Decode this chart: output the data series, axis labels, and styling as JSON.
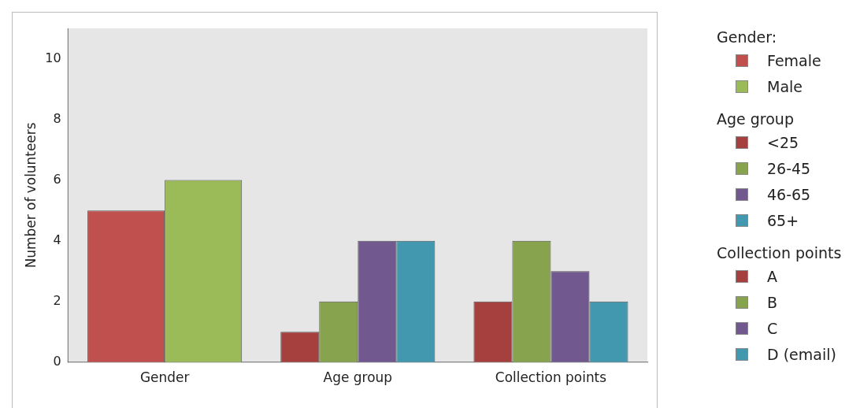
{
  "chart_data": {
    "type": "bar",
    "ylabel": "Number of volunteers",
    "categories": [
      "Gender",
      "Age group",
      "Collection points"
    ],
    "series": [
      {
        "name": "Female",
        "color": "#c0504d",
        "values": [
          5,
          null,
          null
        ]
      },
      {
        "name": "Male",
        "color": "#9bbb59",
        "values": [
          6,
          null,
          null
        ]
      },
      {
        "name": "<25",
        "color": "#a5403f",
        "values": [
          null,
          1,
          null
        ]
      },
      {
        "name": "26-45",
        "color": "#88a34d",
        "values": [
          null,
          2,
          null
        ]
      },
      {
        "name": "46-65",
        "color": "#71588f",
        "values": [
          null,
          4,
          null
        ]
      },
      {
        "name": "65+",
        "color": "#4198af",
        "values": [
          null,
          4,
          null
        ]
      },
      {
        "name": "A",
        "color": "#a5403f",
        "values": [
          null,
          null,
          2
        ]
      },
      {
        "name": "B",
        "color": "#88a34d",
        "values": [
          null,
          null,
          4
        ]
      },
      {
        "name": "C",
        "color": "#71588f",
        "values": [
          null,
          null,
          3
        ]
      },
      {
        "name": "D (email)",
        "color": "#4198af",
        "values": [
          null,
          null,
          2
        ]
      }
    ],
    "legend_title": "Gender:",
    "annotations": [
      "Age group",
      "Collection points"
    ],
    "ylim": [
      0,
      11
    ],
    "yticks": [
      0,
      2,
      4,
      6,
      8,
      10
    ],
    "grid": false,
    "legend": "right"
  }
}
